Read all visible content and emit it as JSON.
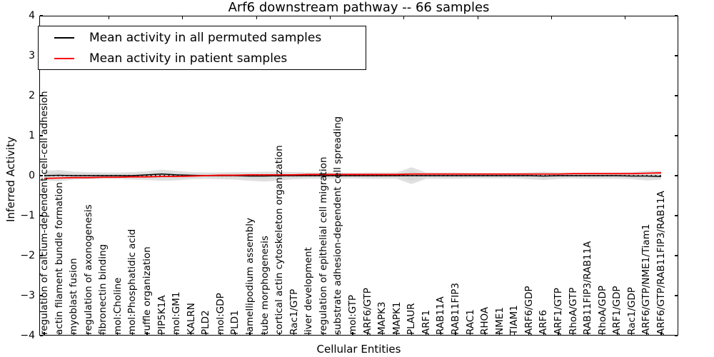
{
  "legend": {
    "items": [
      {
        "label": "Mean activity in all permuted samples",
        "color": "#000000"
      },
      {
        "label": "Mean activity in patient samples",
        "color": "#ff0000"
      }
    ]
  },
  "chart_data": {
    "type": "line",
    "title": "Arf6 downstream pathway -- 66 samples",
    "xlabel": "Cellular Entities",
    "ylabel": "Inferred Activity",
    "ylim": [
      -4,
      4
    ],
    "yticks": [
      4,
      3,
      2,
      1,
      0,
      -1,
      -2,
      -3,
      -4
    ],
    "grid": false,
    "legend_position": "upper left",
    "categories": [
      "regulation of calcium-dependent cell-cell adhesion",
      "actin filament bundle formation",
      "myoblast fusion",
      "regulation of axonogenesis",
      "fibronectin binding",
      "mol:Choline",
      "mol:Phosphatidic acid",
      "ruffle organization",
      "PIP5K1A",
      "mol:GM1",
      "KALRN",
      "PLD2",
      "mol:GDP",
      "PLD1",
      "lamellipodium assembly",
      "tube morphogenesis",
      "cortical actin cytoskeleton organization",
      "Rac1/GTP",
      "liver development",
      "regulation of epithelial cell migration",
      "substrate adhesion-dependent cell spreading",
      "mol:GTP",
      "ARF6/GTP",
      "MAPK3",
      "MAPK1",
      "PLAUR",
      "ARF1",
      "RAB11A",
      "RAB11FIP3",
      "RAC1",
      "RHOA",
      "NME1",
      "TIAM1",
      "ARF6/GDP",
      "ARF6",
      "ARF1/GTP",
      "RhoA/GTP",
      "RAB11FIP3/RAB11A",
      "RhoA/GDP",
      "ARF1/GDP",
      "Rac1/GDP",
      "ARF6/GTP/NME1/Tiam1",
      "ARF6/GTP/RAB11FIP3/RAB11A"
    ],
    "series": [
      {
        "name": "Mean activity in all permuted samples",
        "color": "#000000",
        "values": [
          0.0,
          0.01,
          0.0,
          0.0,
          0.0,
          0.0,
          0.0,
          0.02,
          0.04,
          0.02,
          0.01,
          0.0,
          0.0,
          0.0,
          -0.01,
          -0.01,
          0.0,
          0.0,
          0.0,
          0.0,
          0.0,
          0.0,
          0.0,
          0.0,
          0.0,
          0.0,
          0.0,
          0.0,
          0.0,
          0.0,
          0.0,
          0.0,
          0.0,
          0.0,
          -0.01,
          0.0,
          0.0,
          0.0,
          0.0,
          0.0,
          -0.01,
          -0.01,
          -0.02
        ]
      },
      {
        "name": "Mean activity in patient samples",
        "color": "#ff0000",
        "values": [
          -0.07,
          -0.06,
          -0.05,
          -0.05,
          -0.04,
          -0.04,
          -0.03,
          -0.03,
          -0.02,
          -0.02,
          -0.01,
          0.0,
          0.01,
          0.01,
          0.02,
          0.02,
          0.02,
          0.02,
          0.03,
          0.03,
          0.03,
          0.03,
          0.03,
          0.03,
          0.03,
          0.04,
          0.04,
          0.04,
          0.04,
          0.04,
          0.04,
          0.04,
          0.04,
          0.04,
          0.04,
          0.04,
          0.05,
          0.05,
          0.05,
          0.05,
          0.05,
          0.06,
          0.07
        ]
      }
    ],
    "band": {
      "name": "permuted activity range",
      "color": "#e0e0e0",
      "inner_color": "#d4d4d4",
      "upper": [
        0.12,
        0.14,
        0.1,
        0.09,
        0.08,
        0.08,
        0.09,
        0.11,
        0.15,
        0.12,
        0.09,
        0.08,
        0.08,
        0.09,
        0.09,
        0.1,
        0.1,
        0.09,
        0.08,
        0.08,
        0.08,
        0.07,
        0.08,
        0.08,
        0.08,
        0.21,
        0.08,
        0.08,
        0.08,
        0.07,
        0.07,
        0.07,
        0.07,
        0.08,
        0.1,
        0.08,
        0.07,
        0.08,
        0.08,
        0.08,
        0.09,
        0.12,
        0.12
      ],
      "lower": [
        -0.12,
        -0.14,
        -0.1,
        -0.09,
        -0.08,
        -0.08,
        -0.1,
        -0.11,
        -0.13,
        -0.12,
        -0.09,
        -0.08,
        -0.09,
        -0.1,
        -0.13,
        -0.15,
        -0.12,
        -0.09,
        -0.08,
        -0.08,
        -0.08,
        -0.07,
        -0.08,
        -0.08,
        -0.08,
        -0.21,
        -0.08,
        -0.08,
        -0.08,
        -0.07,
        -0.07,
        -0.07,
        -0.07,
        -0.09,
        -0.11,
        -0.08,
        -0.07,
        -0.08,
        -0.08,
        -0.08,
        -0.09,
        -0.12,
        -0.1
      ]
    },
    "zero_line": {
      "style": "dotted",
      "color": "#000000",
      "y": 0
    }
  }
}
